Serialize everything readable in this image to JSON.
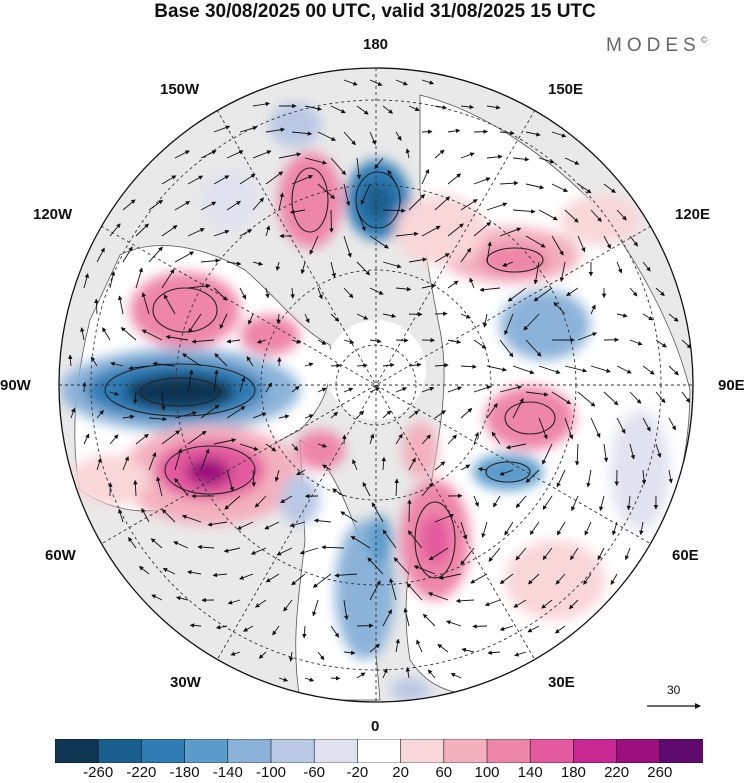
{
  "title": "Base 30/08/2025 00 UTC, valid 31/08/2025 15 UTC",
  "brand": "MODES",
  "brand_mark": "©",
  "longitude_labels": {
    "lon_180": "180",
    "lon_150w": "150W",
    "lon_150e": "150E",
    "lon_120w": "120W",
    "lon_120e": "120E",
    "lon_90w": "90W",
    "lon_90e": "90E",
    "lon_60w": "60W",
    "lon_60e": "60E",
    "lon_30w": "30W",
    "lon_30e": "30E",
    "lon_0": "0"
  },
  "reference_vector": {
    "label": "30",
    "value": 30
  },
  "colorbar": {
    "labels": [
      "-260",
      "-220",
      "-180",
      "-140",
      "-100",
      "-60",
      "-20",
      "20",
      "60",
      "100",
      "140",
      "180",
      "220",
      "260"
    ],
    "colors": [
      "#0e3552",
      "#1a5f8e",
      "#2f7cb5",
      "#5b9ccb",
      "#8bb3d9",
      "#b9c8e4",
      "#e1e2f0",
      "#ffffff",
      "#f9d6d8",
      "#f3b0bd",
      "#ee86a9",
      "#e35a9e",
      "#c82690",
      "#9d0e7e",
      "#5e0a6e"
    ]
  }
}
